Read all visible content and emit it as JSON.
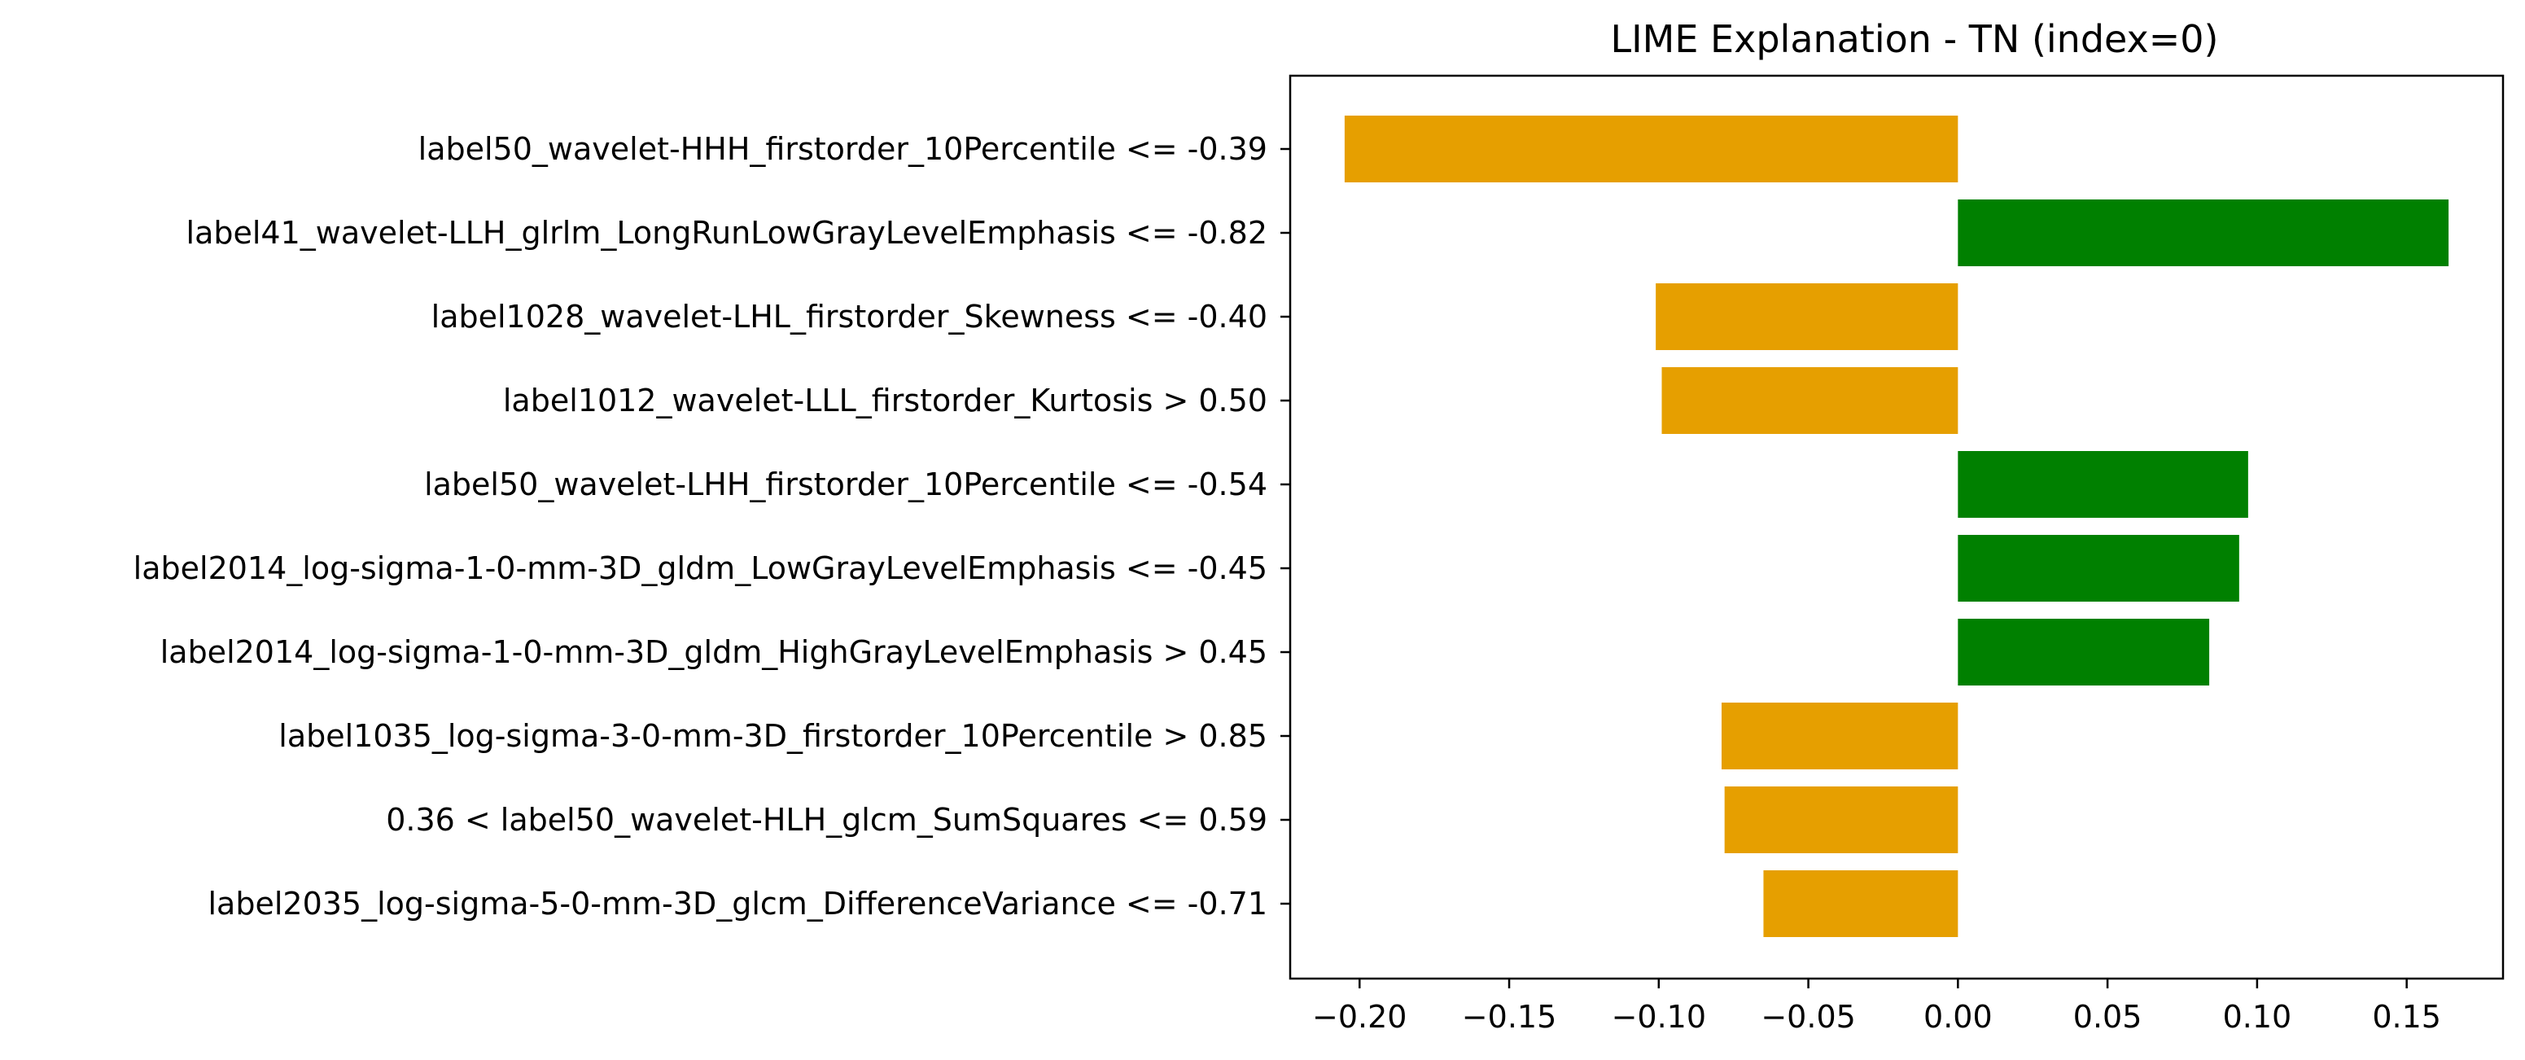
{
  "chart_data": {
    "type": "bar",
    "orientation": "horizontal",
    "title": "LIME Explanation - TN (index=0)",
    "xlabel": "",
    "ylabel": "",
    "xlim": [
      -0.2232,
      0.1822
    ],
    "xticks": [
      -0.2,
      -0.15,
      -0.1,
      -0.05,
      0.0,
      0.05,
      0.1,
      0.15
    ],
    "xtick_labels": [
      "−0.20",
      "−0.15",
      "−0.10",
      "−0.05",
      "0.00",
      "0.05",
      "0.10",
      "0.15"
    ],
    "grid": false,
    "legend": "none",
    "colors": {
      "positive": "#008000",
      "negative": "#E69F00"
    },
    "categories": [
      "label50_wavelet-HHH_firstorder_10Percentile <= -0.39",
      "label41_wavelet-LLH_glrlm_LongRunLowGrayLevelEmphasis <= -0.82",
      "label1028_wavelet-LHL_firstorder_Skewness <= -0.40",
      "label1012_wavelet-LLL_firstorder_Kurtosis > 0.50",
      "label50_wavelet-LHH_firstorder_10Percentile <= -0.54",
      "label2014_log-sigma-1-0-mm-3D_gldm_LowGrayLevelEmphasis <= -0.45",
      "label2014_log-sigma-1-0-mm-3D_gldm_HighGrayLevelEmphasis > 0.45",
      "label1035_log-sigma-3-0-mm-3D_firstorder_10Percentile > 0.85",
      "0.36 < label50_wavelet-HLH_glcm_SumSquares <= 0.59",
      "label2035_log-sigma-5-0-mm-3D_glcm_DifferenceVariance <= -0.71"
    ],
    "values": [
      -0.205,
      0.164,
      -0.101,
      -0.099,
      0.097,
      0.094,
      0.084,
      -0.079,
      -0.078,
      -0.065
    ]
  }
}
